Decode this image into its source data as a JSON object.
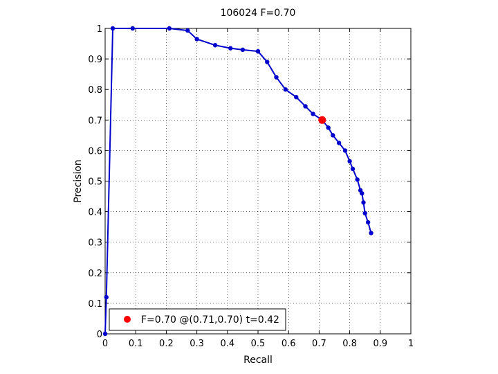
{
  "chart_data": {
    "type": "line",
    "title": "106024 F=0.70",
    "xlabel": "Recall",
    "ylabel": "Precision",
    "xlim": [
      0,
      1
    ],
    "ylim": [
      0,
      1
    ],
    "xticks": [
      0,
      0.1,
      0.2,
      0.3,
      0.4,
      0.5,
      0.6,
      0.7,
      0.8,
      0.9,
      1
    ],
    "yticks": [
      0,
      0.1,
      0.2,
      0.3,
      0.4,
      0.5,
      0.6,
      0.7,
      0.8,
      0.9,
      1
    ],
    "xtick_labels": [
      "0",
      "0.1",
      "0.2",
      "0.3",
      "0.4",
      "0.5",
      "0.6",
      "0.7",
      "0.8",
      "0.9",
      "1"
    ],
    "ytick_labels": [
      "0",
      "0.1",
      "0.2",
      "0.3",
      "0.4",
      "0.5",
      "0.6",
      "0.7",
      "0.8",
      "0.9",
      "1"
    ],
    "grid": true,
    "series": [
      {
        "color": "#0000cc",
        "x": [
          0.0,
          0.004,
          0.025,
          0.09,
          0.21,
          0.27,
          0.3,
          0.36,
          0.41,
          0.45,
          0.5,
          0.53,
          0.56,
          0.59,
          0.625,
          0.655,
          0.68,
          0.71,
          0.73,
          0.745,
          0.765,
          0.785,
          0.8,
          0.81,
          0.825,
          0.835,
          0.84,
          0.845,
          0.85,
          0.86,
          0.87
        ],
        "y": [
          0.0,
          0.12,
          1.0,
          1.0,
          1.0,
          0.993,
          0.965,
          0.945,
          0.935,
          0.93,
          0.925,
          0.89,
          0.84,
          0.8,
          0.775,
          0.745,
          0.72,
          0.7,
          0.675,
          0.65,
          0.625,
          0.6,
          0.565,
          0.54,
          0.505,
          0.47,
          0.46,
          0.43,
          0.395,
          0.365,
          0.33
        ]
      }
    ],
    "highlight_point": {
      "x": 0.71,
      "y": 0.7,
      "color": "#ff0000"
    },
    "legend": {
      "position": "bottom-left",
      "label": "F=0.70 @(0.71,0.70) t=0.42"
    }
  }
}
